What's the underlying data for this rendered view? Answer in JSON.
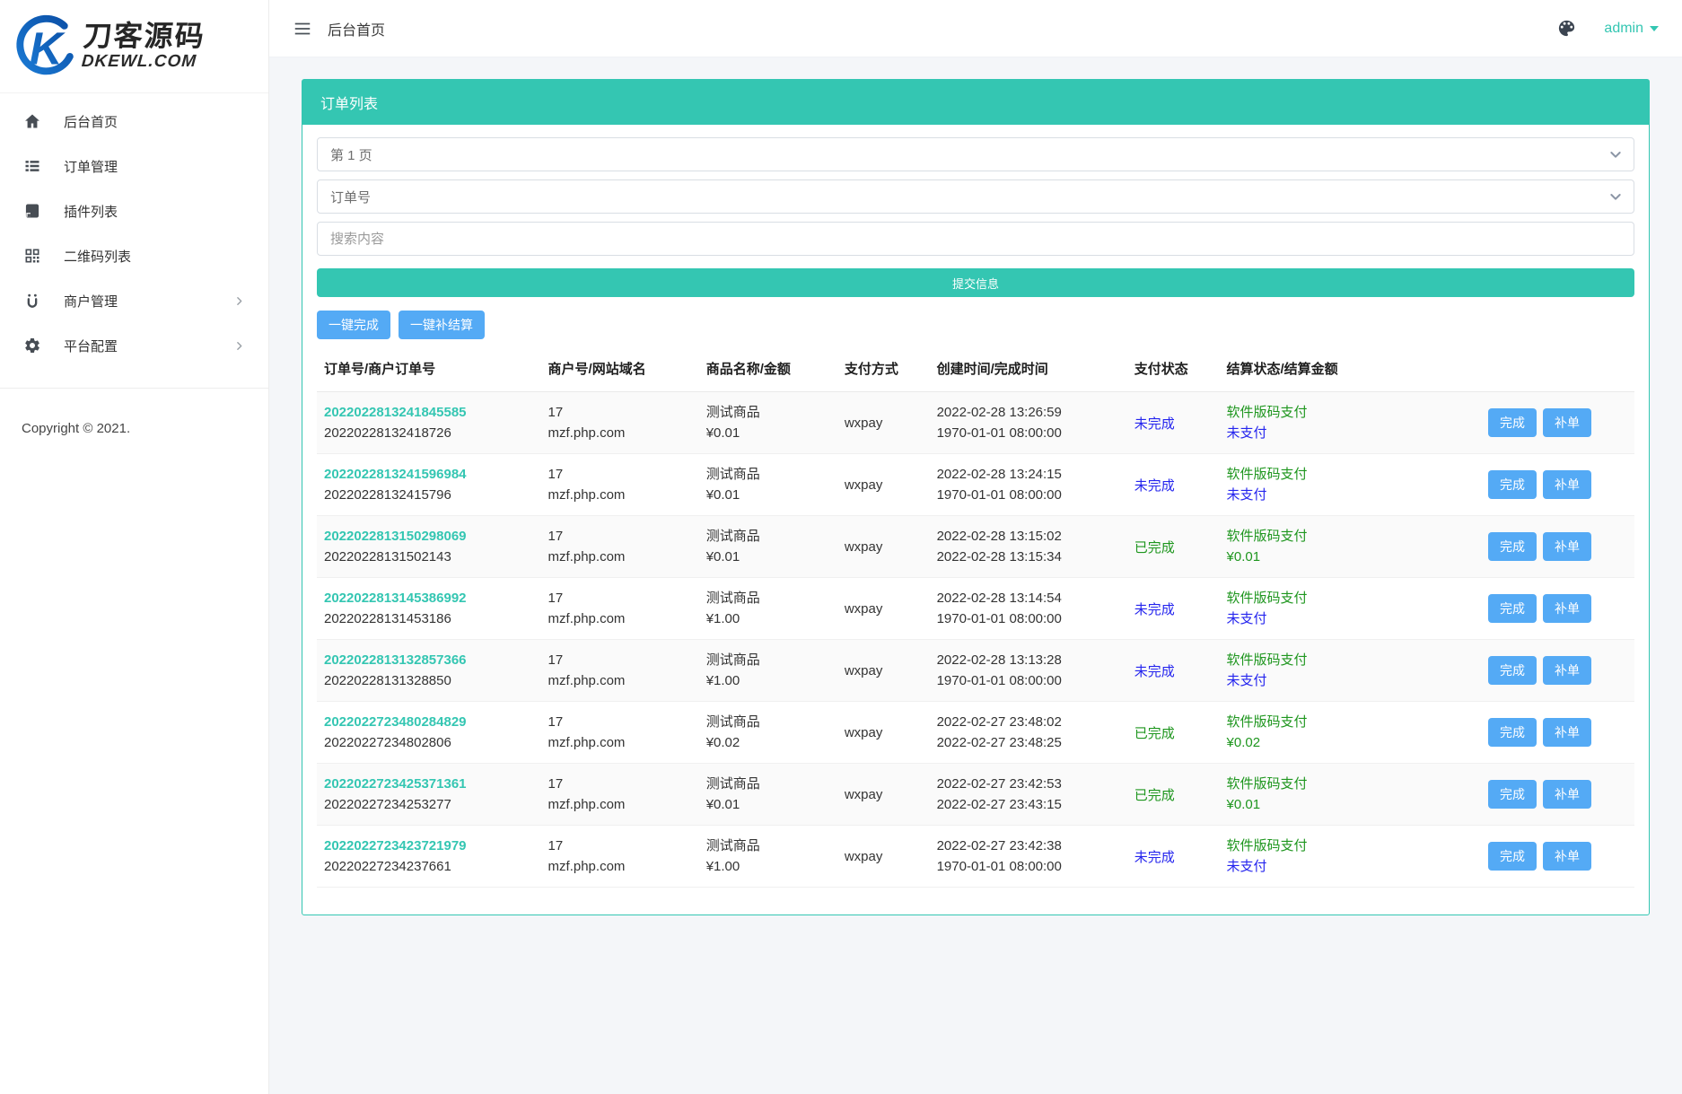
{
  "colors": {
    "teal": "#34c6b2",
    "button_blue": "#54aaf5",
    "status_blue": "#2424ee",
    "status_green": "#1e961e"
  },
  "brand": {
    "title": "刀客源码",
    "subtitle": "DKEWL.COM"
  },
  "header": {
    "breadcrumb": "后台首页",
    "user": "admin"
  },
  "sidebar": {
    "items": [
      {
        "id": "home",
        "label": "后台首页",
        "icon": "home-icon",
        "has_submenu": false
      },
      {
        "id": "orders",
        "label": "订单管理",
        "icon": "list-icon",
        "has_submenu": false
      },
      {
        "id": "plugins",
        "label": "插件列表",
        "icon": "plugin-icon",
        "has_submenu": false
      },
      {
        "id": "qrcodes",
        "label": "二维码列表",
        "icon": "qrcode-icon",
        "has_submenu": false
      },
      {
        "id": "merchants",
        "label": "商户管理",
        "icon": "merchant-icon",
        "has_submenu": true
      },
      {
        "id": "platform",
        "label": "平台配置",
        "icon": "gear-icon",
        "has_submenu": true
      }
    ],
    "copyright": "Copyright © 2021."
  },
  "panel": {
    "title": "订单列表",
    "filters": {
      "page_select": "第 1 页",
      "field_select": "订单号",
      "search_placeholder": "搜索内容",
      "submit_label": "提交信息"
    },
    "bulk_actions": [
      {
        "id": "complete-all",
        "label": "一键完成"
      },
      {
        "id": "resettle-all",
        "label": "一键补结算"
      }
    ]
  },
  "table": {
    "headers": [
      "订单号/商户订单号",
      "商户号/网站域名",
      "商品名称/金额",
      "支付方式",
      "创建时间/完成时间",
      "支付状态",
      "结算状态/结算金额",
      ""
    ],
    "row_actions": [
      {
        "id": "complete",
        "label": "完成"
      },
      {
        "id": "reorder",
        "label": "补单"
      }
    ],
    "rows": [
      {
        "order_no": "2022022813241845585",
        "merchant_order_no": "20220228132418726",
        "merchant_id": "17",
        "domain": "mzf.php.com",
        "product": "测试商品",
        "amount": "¥0.01",
        "pay_method": "wxpay",
        "created": "2022-02-28 13:26:59",
        "completed": "1970-01-01 08:00:00",
        "pay_status": "未完成",
        "pay_status_color": "blue",
        "settle_status": "软件版码支付",
        "settle_value": "未支付",
        "settle_value_color": "blue"
      },
      {
        "order_no": "2022022813241596984",
        "merchant_order_no": "20220228132415796",
        "merchant_id": "17",
        "domain": "mzf.php.com",
        "product": "测试商品",
        "amount": "¥0.01",
        "pay_method": "wxpay",
        "created": "2022-02-28 13:24:15",
        "completed": "1970-01-01 08:00:00",
        "pay_status": "未完成",
        "pay_status_color": "blue",
        "settle_status": "软件版码支付",
        "settle_value": "未支付",
        "settle_value_color": "blue"
      },
      {
        "order_no": "2022022813150298069",
        "merchant_order_no": "20220228131502143",
        "merchant_id": "17",
        "domain": "mzf.php.com",
        "product": "测试商品",
        "amount": "¥0.01",
        "pay_method": "wxpay",
        "created": "2022-02-28 13:15:02",
        "completed": "2022-02-28 13:15:34",
        "pay_status": "已完成",
        "pay_status_color": "green",
        "settle_status": "软件版码支付",
        "settle_value": "¥0.01",
        "settle_value_color": "green"
      },
      {
        "order_no": "2022022813145386992",
        "merchant_order_no": "20220228131453186",
        "merchant_id": "17",
        "domain": "mzf.php.com",
        "product": "测试商品",
        "amount": "¥1.00",
        "pay_method": "wxpay",
        "created": "2022-02-28 13:14:54",
        "completed": "1970-01-01 08:00:00",
        "pay_status": "未完成",
        "pay_status_color": "blue",
        "settle_status": "软件版码支付",
        "settle_value": "未支付",
        "settle_value_color": "blue"
      },
      {
        "order_no": "2022022813132857366",
        "merchant_order_no": "20220228131328850",
        "merchant_id": "17",
        "domain": "mzf.php.com",
        "product": "测试商品",
        "amount": "¥1.00",
        "pay_method": "wxpay",
        "created": "2022-02-28 13:13:28",
        "completed": "1970-01-01 08:00:00",
        "pay_status": "未完成",
        "pay_status_color": "blue",
        "settle_status": "软件版码支付",
        "settle_value": "未支付",
        "settle_value_color": "blue"
      },
      {
        "order_no": "2022022723480284829",
        "merchant_order_no": "20220227234802806",
        "merchant_id": "17",
        "domain": "mzf.php.com",
        "product": "测试商品",
        "amount": "¥0.02",
        "pay_method": "wxpay",
        "created": "2022-02-27 23:48:02",
        "completed": "2022-02-27 23:48:25",
        "pay_status": "已完成",
        "pay_status_color": "green",
        "settle_status": "软件版码支付",
        "settle_value": "¥0.02",
        "settle_value_color": "green"
      },
      {
        "order_no": "2022022723425371361",
        "merchant_order_no": "20220227234253277",
        "merchant_id": "17",
        "domain": "mzf.php.com",
        "product": "测试商品",
        "amount": "¥0.01",
        "pay_method": "wxpay",
        "created": "2022-02-27 23:42:53",
        "completed": "2022-02-27 23:43:15",
        "pay_status": "已完成",
        "pay_status_color": "green",
        "settle_status": "软件版码支付",
        "settle_value": "¥0.01",
        "settle_value_color": "green"
      },
      {
        "order_no": "2022022723423721979",
        "merchant_order_no": "20220227234237661",
        "merchant_id": "17",
        "domain": "mzf.php.com",
        "product": "测试商品",
        "amount": "¥1.00",
        "pay_method": "wxpay",
        "created": "2022-02-27 23:42:38",
        "completed": "1970-01-01 08:00:00",
        "pay_status": "未完成",
        "pay_status_color": "blue",
        "settle_status": "软件版码支付",
        "settle_value": "未支付",
        "settle_value_color": "blue"
      }
    ]
  }
}
